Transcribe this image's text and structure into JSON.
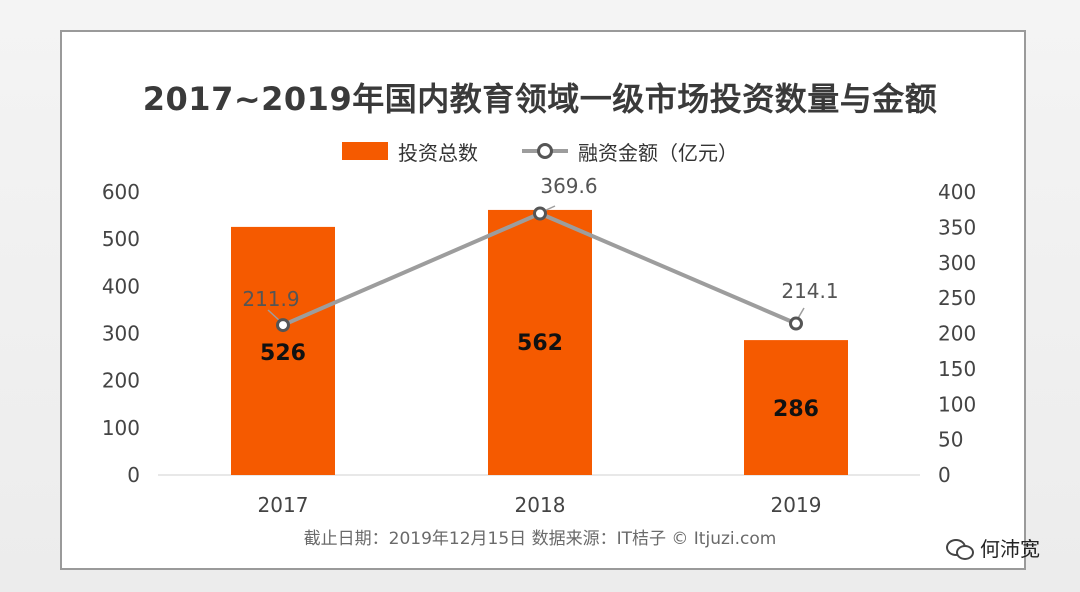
{
  "chart_data": {
    "type": "bar",
    "title": "2017~2019年国内教育领域一级市场投资数量与金额",
    "categories": [
      "2017",
      "2018",
      "2019"
    ],
    "series": [
      {
        "name": "投资总数",
        "type": "bar",
        "axis": "left",
        "values": [
          526,
          562,
          286
        ]
      },
      {
        "name": "融资金额（亿元）",
        "type": "line",
        "axis": "right",
        "values": [
          211.9,
          369.6,
          214.1
        ]
      }
    ],
    "ylim_left": [
      0,
      600
    ],
    "yticks_left": [
      0,
      100,
      200,
      300,
      400,
      500,
      600
    ],
    "ylim_right": [
      0,
      400
    ],
    "yticks_right": [
      0,
      50,
      100,
      150,
      200,
      250,
      300,
      350,
      400
    ],
    "legend_position": "top-center",
    "grid": false,
    "colors": {
      "bar": "#f55a00",
      "line": "#9d9d9d",
      "marker": "#555555"
    }
  },
  "footer": "截止日期：2019年12月15日    数据来源：IT桔子 © Itjuzi.com",
  "watermark": "何沛宽",
  "watermark_icon": "wechat-icon"
}
